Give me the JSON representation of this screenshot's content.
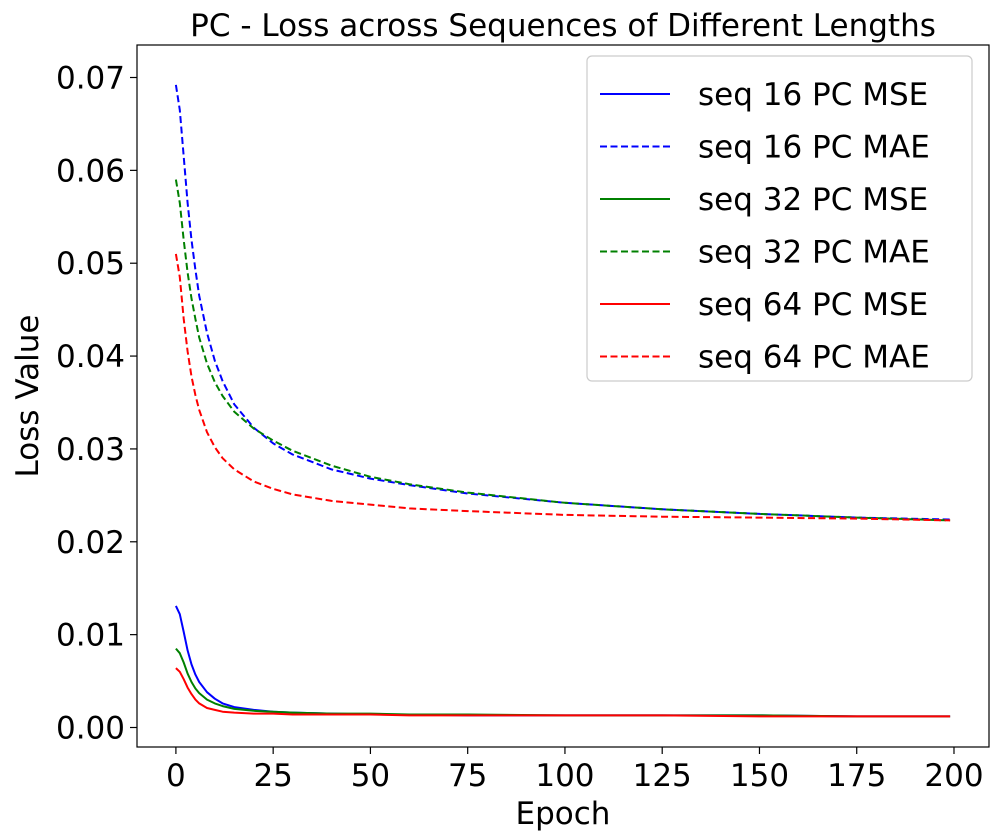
{
  "chart_data": {
    "type": "line",
    "title": "PC - Loss across Sequences of Different Lengths",
    "xlabel": "Epoch",
    "ylabel": "Loss Value",
    "xlim": [
      -10,
      209
    ],
    "ylim": [
      -0.0021,
      0.0735
    ],
    "x_ticks": [
      0,
      25,
      50,
      75,
      100,
      125,
      150,
      175,
      200
    ],
    "x_tick_labels": [
      "0",
      "25",
      "50",
      "75",
      "100",
      "125",
      "150",
      "175",
      "200"
    ],
    "y_ticks": [
      0.0,
      0.01,
      0.02,
      0.03,
      0.04,
      0.05,
      0.06,
      0.07
    ],
    "y_tick_labels": [
      "0.00",
      "0.01",
      "0.02",
      "0.03",
      "0.04",
      "0.05",
      "0.06",
      "0.07"
    ],
    "grid": false,
    "legend_position": "top-right",
    "x": [
      0,
      1,
      2,
      3,
      4,
      5,
      6,
      8,
      10,
      12,
      15,
      20,
      25,
      30,
      40,
      50,
      60,
      75,
      100,
      125,
      150,
      175,
      199
    ],
    "series": [
      {
        "name": "seq 16 PC MSE",
        "color": "#0000ff",
        "dash": "solid",
        "values": [
          0.0131,
          0.0122,
          0.0103,
          0.0083,
          0.0068,
          0.0057,
          0.0049,
          0.0038,
          0.0031,
          0.0026,
          0.0022,
          0.0019,
          0.0017,
          0.0016,
          0.0015,
          0.0014,
          0.0014,
          0.0013,
          0.0013,
          0.0013,
          0.0013,
          0.0012,
          0.0012
        ]
      },
      {
        "name": "seq 16 PC MAE",
        "color": "#0000ff",
        "dash": "dashed",
        "values": [
          0.0692,
          0.0665,
          0.0615,
          0.0565,
          0.0525,
          0.0493,
          0.0465,
          0.0425,
          0.0395,
          0.0373,
          0.0348,
          0.0323,
          0.0306,
          0.0294,
          0.0278,
          0.0268,
          0.0261,
          0.0252,
          0.0242,
          0.0235,
          0.023,
          0.0226,
          0.0224
        ]
      },
      {
        "name": "seq 32 PC MSE",
        "color": "#008000",
        "dash": "solid",
        "values": [
          0.0085,
          0.008,
          0.007,
          0.0058,
          0.0049,
          0.0042,
          0.0037,
          0.003,
          0.0026,
          0.0023,
          0.002,
          0.0018,
          0.0017,
          0.0016,
          0.0015,
          0.0015,
          0.0014,
          0.0014,
          0.0013,
          0.0013,
          0.0013,
          0.0012,
          0.0012
        ]
      },
      {
        "name": "seq 32 PC MAE",
        "color": "#008000",
        "dash": "dashed",
        "values": [
          0.059,
          0.0565,
          0.0525,
          0.049,
          0.0462,
          0.044,
          0.042,
          0.0392,
          0.0372,
          0.0357,
          0.034,
          0.0322,
          0.0309,
          0.0298,
          0.0282,
          0.027,
          0.0262,
          0.0253,
          0.0242,
          0.0235,
          0.023,
          0.0226,
          0.0223
        ]
      },
      {
        "name": "seq 64 PC MSE",
        "color": "#ff0000",
        "dash": "solid",
        "values": [
          0.0064,
          0.006,
          0.0052,
          0.0043,
          0.0036,
          0.003,
          0.0026,
          0.0021,
          0.0019,
          0.0017,
          0.0016,
          0.0015,
          0.0015,
          0.0014,
          0.0014,
          0.0014,
          0.0013,
          0.0013,
          0.0013,
          0.0013,
          0.0012,
          0.0012,
          0.0012
        ]
      },
      {
        "name": "seq 64 PC MAE",
        "color": "#ff0000",
        "dash": "dashed",
        "values": [
          0.051,
          0.0485,
          0.044,
          0.0405,
          0.0378,
          0.0358,
          0.0342,
          0.0318,
          0.0302,
          0.029,
          0.0278,
          0.0265,
          0.0257,
          0.0251,
          0.0244,
          0.024,
          0.0236,
          0.0233,
          0.0229,
          0.0227,
          0.0226,
          0.0225,
          0.0223
        ]
      }
    ]
  }
}
